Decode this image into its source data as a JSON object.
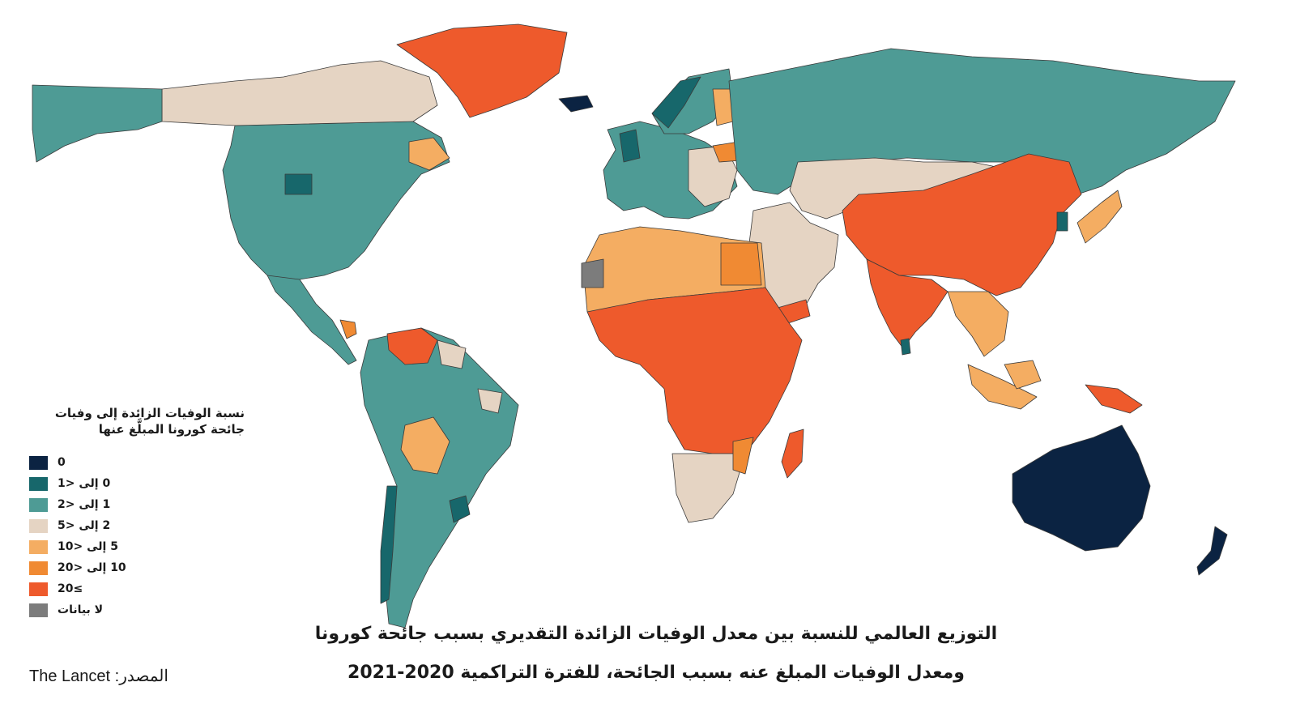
{
  "legend": {
    "title": "نسبة الوفيات الزائدة إلى وفيات جائحة كورونا المبلَّغ عنها",
    "items": [
      {
        "label": "0",
        "color": "#0b2342"
      },
      {
        "label": "0 إلى <1",
        "color": "#17676b"
      },
      {
        "label": "1 إلى <2",
        "color": "#4e9b95"
      },
      {
        "label": "2 إلى <5",
        "color": "#e5d4c3"
      },
      {
        "label": "5 إلى <10",
        "color": "#f4ad62"
      },
      {
        "label": "10 إلى <20",
        "color": "#f08a33"
      },
      {
        "label": "20≤",
        "color": "#ee5a2c"
      },
      {
        "label": "لا بيانات",
        "color": "#7c7c7c"
      }
    ]
  },
  "title_line1": "التوزيع العالمي للنسبة بين معدل الوفيات الزائدة التقديري بسبب جائحة كورونا",
  "title_line2": "ومعدل الوفيات المبلغ عنه بسبب الجائحة، للفترة التراكمية 2020-2021",
  "source": "The Lancet :المصدر",
  "regions": [
    {
      "name": "north-america",
      "class": "1 إلى <2"
    },
    {
      "name": "canada-north",
      "class": "2 إلى <5"
    },
    {
      "name": "greenland",
      "class": "20≤"
    },
    {
      "name": "south-america",
      "class": "1 إلى <2"
    },
    {
      "name": "venezuela",
      "class": "20≤"
    },
    {
      "name": "bolivia",
      "class": "5 إلى <10"
    },
    {
      "name": "europe",
      "class": "1 إلى <2"
    },
    {
      "name": "russia",
      "class": "1 إلى <2"
    },
    {
      "name": "north-africa",
      "class": "5 إلى <10"
    },
    {
      "name": "sub-saharan-africa",
      "class": "20≤"
    },
    {
      "name": "southern-africa",
      "class": "2 إلى <5"
    },
    {
      "name": "madagascar",
      "class": "20≤"
    },
    {
      "name": "middle-east",
      "class": "2 إلى <5"
    },
    {
      "name": "central-asia",
      "class": "2 إلى <5"
    },
    {
      "name": "china",
      "class": "20≤"
    },
    {
      "name": "south-asia",
      "class": "20≤"
    },
    {
      "name": "southeast-asia",
      "class": "5 إلى <10"
    },
    {
      "name": "japan",
      "class": "5 إلى <10"
    },
    {
      "name": "australia",
      "class": "0"
    },
    {
      "name": "new-zealand",
      "class": "0"
    },
    {
      "name": "western-sahara",
      "class": "لا بيانات"
    }
  ]
}
